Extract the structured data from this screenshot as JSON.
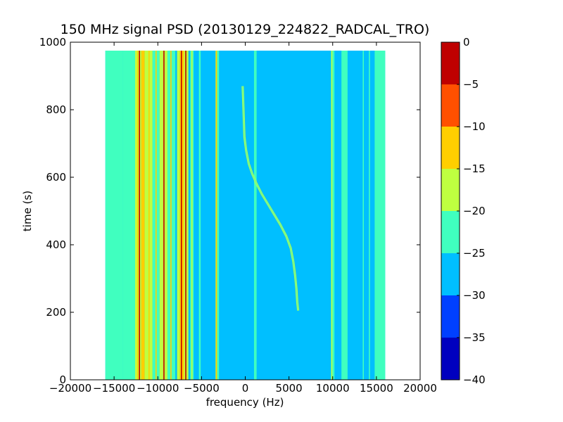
{
  "chart_data": {
    "type": "heatmap",
    "title": "150 MHz signal PSD (20130129_224822_RADCAL_TRO)",
    "xlabel": "frequency (Hz)",
    "ylabel": "time (s)",
    "xlim": [
      -20000,
      20000
    ],
    "ylim": [
      0,
      1000
    ],
    "x_ticks": [
      -20000,
      -15000,
      -10000,
      -5000,
      0,
      5000,
      10000,
      15000,
      20000
    ],
    "x_tick_labels": [
      "−20000",
      "−15000",
      "−10000",
      "−5000",
      "0",
      "5000",
      "10000",
      "15000",
      "20000"
    ],
    "y_ticks": [
      0,
      200,
      400,
      600,
      800,
      1000
    ],
    "y_tick_labels": [
      "0",
      "200",
      "400",
      "600",
      "800",
      "1000"
    ],
    "data_extent": {
      "freq": [
        -16000,
        16000
      ],
      "time": [
        0,
        975
      ]
    },
    "background_level": -27.5,
    "colorbar": {
      "levels": [
        -40,
        -35,
        -30,
        -25,
        -20,
        -15,
        -10,
        -5,
        0
      ],
      "tick_labels": [
        "−40",
        "−35",
        "−30",
        "−25",
        "−20",
        "−15",
        "−10",
        "−5",
        "0"
      ],
      "colors": [
        "#0000bf",
        "#0040ff",
        "#00bfff",
        "#40ffbf",
        "#bfff40",
        "#ffcf00",
        "#ff5000",
        "#bf0000"
      ]
    },
    "bands": [
      {
        "f0": -16000,
        "f1": -14000,
        "level": -22.5
      },
      {
        "f0": -14000,
        "f1": -12600,
        "level": -22.5
      },
      {
        "f0": -12600,
        "f1": -11900,
        "level": -17.5
      },
      {
        "f0": -11900,
        "f1": -11500,
        "level": -12.5
      },
      {
        "f0": -11500,
        "f1": -10600,
        "level": -17.5
      },
      {
        "f0": -10600,
        "f1": -9800,
        "level": -22.5
      },
      {
        "f0": -9800,
        "f1": -8900,
        "level": -17.5
      },
      {
        "f0": -8900,
        "f1": -8000,
        "level": -22.5
      },
      {
        "f0": -7800,
        "f1": -7500,
        "level": -17.5
      },
      {
        "f0": -7500,
        "f1": -7000,
        "level": -12.5
      },
      {
        "f0": -7000,
        "f1": -6500,
        "level": -17.5
      },
      {
        "f0": -6300,
        "f1": -5900,
        "level": -22.5
      },
      {
        "f0": -5300,
        "f1": -5100,
        "level": -22.5
      },
      {
        "f0": -3400,
        "f1": -3200,
        "level": -17.5
      },
      {
        "f0": -3200,
        "f1": -3000,
        "level": -22.5
      },
      {
        "f0": 1000,
        "f1": 1300,
        "level": -22.5
      },
      {
        "f0": 9800,
        "f1": 10200,
        "level": -22.5
      },
      {
        "f0": 11000,
        "f1": 11700,
        "level": -22.5
      },
      {
        "f0": 14800,
        "f1": 16000,
        "level": -22.5
      }
    ],
    "lines": [
      {
        "f": -12300,
        "level": -12.5
      },
      {
        "f": -12100,
        "level": -2.5
      },
      {
        "f": -11000,
        "level": -12.5
      },
      {
        "f": -10200,
        "level": -12.5
      },
      {
        "f": -9300,
        "level": -2.5
      },
      {
        "f": -8500,
        "level": -12.5
      },
      {
        "f": -7300,
        "level": -2.5
      },
      {
        "f": -6800,
        "level": -2.5
      },
      {
        "f": -6100,
        "level": -17.5
      },
      {
        "f": -3300,
        "level": -12.5
      },
      {
        "f": 9900,
        "level": -17.5
      },
      {
        "f": 11200,
        "level": -22.5
      },
      {
        "f": 13500,
        "level": -22.5
      },
      {
        "f": 14200,
        "level": -22.5
      }
    ],
    "signal_trace": {
      "level": -17.5,
      "points": [
        {
          "f": -300,
          "t": 870
        },
        {
          "f": -200,
          "t": 800
        },
        {
          "f": -100,
          "t": 720
        },
        {
          "f": 100,
          "t": 680
        },
        {
          "f": 400,
          "t": 640
        },
        {
          "f": 800,
          "t": 610
        },
        {
          "f": 1300,
          "t": 580
        },
        {
          "f": 1900,
          "t": 550
        },
        {
          "f": 2600,
          "t": 520
        },
        {
          "f": 3300,
          "t": 490
        },
        {
          "f": 4000,
          "t": 460
        },
        {
          "f": 4700,
          "t": 425
        },
        {
          "f": 5200,
          "t": 390
        },
        {
          "f": 5500,
          "t": 350
        },
        {
          "f": 5700,
          "t": 310
        },
        {
          "f": 5850,
          "t": 270
        },
        {
          "f": 5950,
          "t": 230
        },
        {
          "f": 6050,
          "t": 205
        }
      ]
    }
  }
}
